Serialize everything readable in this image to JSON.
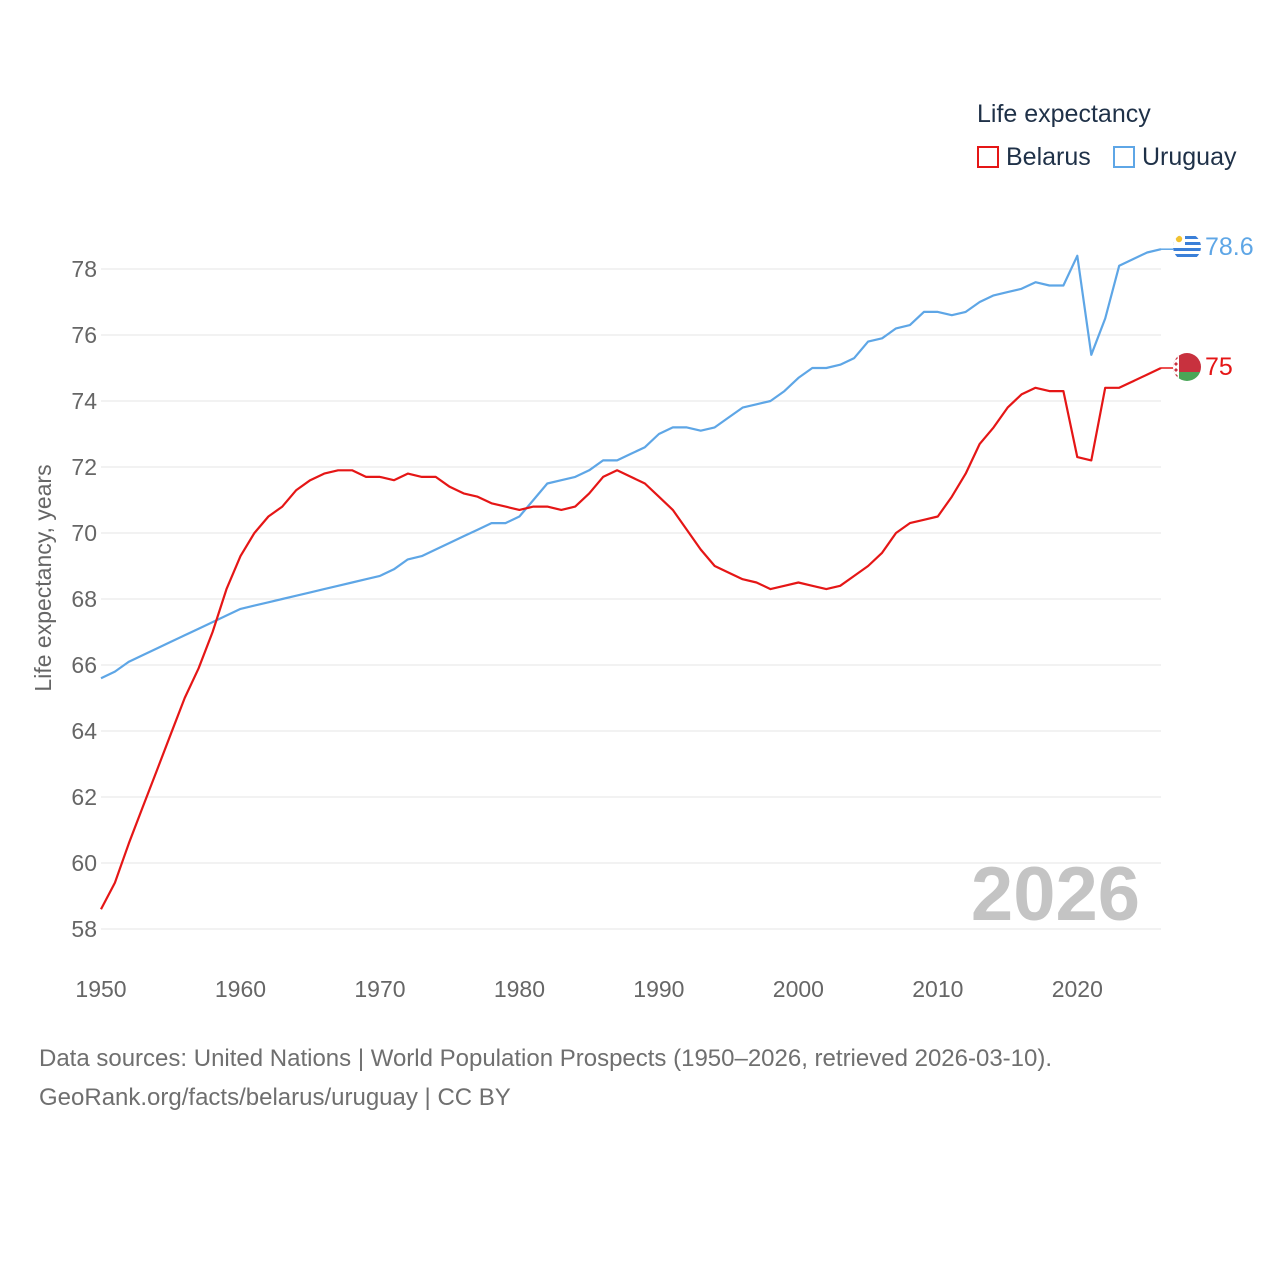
{
  "legend": {
    "title": "Life expectancy",
    "items": [
      {
        "label": "Belarus",
        "color": "#e51616"
      },
      {
        "label": "Uruguay",
        "color": "#5ea6e6"
      }
    ]
  },
  "source": {
    "line1": "Data sources: United Nations | World Population Prospects (1950–2026, retrieved 2026-03-10).",
    "line2": "GeoRank.org/facts/belarus/uruguay | CC BY"
  },
  "chart_data": {
    "type": "line",
    "title": "Life expectancy",
    "xlabel": "",
    "ylabel": "Life expectancy, years",
    "xlim": [
      1950,
      2026
    ],
    "ylim": [
      57.5,
      79.5
    ],
    "x_ticks": [
      "1950",
      "1960",
      "1970",
      "1980",
      "1990",
      "2000",
      "2010",
      "2020"
    ],
    "y_ticks": [
      "58",
      "60",
      "62",
      "64",
      "66",
      "68",
      "70",
      "72",
      "74",
      "76",
      "78"
    ],
    "grid": "horizontal",
    "legend_position": "top-right",
    "watermark": "2026",
    "x": [
      1950,
      1951,
      1952,
      1953,
      1954,
      1955,
      1956,
      1957,
      1958,
      1959,
      1960,
      1961,
      1962,
      1963,
      1964,
      1965,
      1966,
      1967,
      1968,
      1969,
      1970,
      1971,
      1972,
      1973,
      1974,
      1975,
      1976,
      1977,
      1978,
      1979,
      1980,
      1981,
      1982,
      1983,
      1984,
      1985,
      1986,
      1987,
      1988,
      1989,
      1990,
      1991,
      1992,
      1993,
      1994,
      1995,
      1996,
      1997,
      1998,
      1999,
      2000,
      2001,
      2002,
      2003,
      2004,
      2005,
      2006,
      2007,
      2008,
      2009,
      2010,
      2011,
      2012,
      2013,
      2014,
      2015,
      2016,
      2017,
      2018,
      2019,
      2020,
      2021,
      2022,
      2023,
      2024,
      2025,
      2026
    ],
    "series": [
      {
        "name": "Belarus",
        "color": "#e51616",
        "end_label": "75",
        "values": [
          58.6,
          59.4,
          60.6,
          61.7,
          62.8,
          63.9,
          65.0,
          65.9,
          67.0,
          68.3,
          69.3,
          70.0,
          70.5,
          70.8,
          71.3,
          71.6,
          71.8,
          71.9,
          71.9,
          71.7,
          71.7,
          71.6,
          71.8,
          71.7,
          71.7,
          71.4,
          71.2,
          71.1,
          70.9,
          70.8,
          70.7,
          70.8,
          70.8,
          70.7,
          70.8,
          71.2,
          71.7,
          71.9,
          71.7,
          71.5,
          71.1,
          70.7,
          70.1,
          69.5,
          69.0,
          68.8,
          68.6,
          68.5,
          68.3,
          68.4,
          68.5,
          68.4,
          68.3,
          68.4,
          68.7,
          69.0,
          69.4,
          70.0,
          70.3,
          70.4,
          70.5,
          71.1,
          71.8,
          72.7,
          73.2,
          73.8,
          74.2,
          74.4,
          74.3,
          74.3,
          72.3,
          72.2,
          74.4,
          74.4,
          74.6,
          74.8,
          75.0
        ]
      },
      {
        "name": "Uruguay",
        "color": "#5ea6e6",
        "end_label": "78.6",
        "values": [
          65.6,
          65.8,
          66.1,
          66.3,
          66.5,
          66.7,
          66.9,
          67.1,
          67.3,
          67.5,
          67.7,
          67.8,
          67.9,
          68.0,
          68.1,
          68.2,
          68.3,
          68.4,
          68.5,
          68.6,
          68.7,
          68.9,
          69.2,
          69.3,
          69.5,
          69.7,
          69.9,
          70.1,
          70.3,
          70.3,
          70.5,
          71.0,
          71.5,
          71.6,
          71.7,
          71.9,
          72.2,
          72.2,
          72.4,
          72.6,
          73.0,
          73.2,
          73.2,
          73.1,
          73.2,
          73.5,
          73.8,
          73.9,
          74.0,
          74.3,
          74.7,
          75.0,
          75.0,
          75.1,
          75.3,
          75.8,
          75.9,
          76.2,
          76.3,
          76.7,
          76.7,
          76.6,
          76.7,
          77.0,
          77.2,
          77.3,
          77.4,
          77.6,
          77.5,
          77.5,
          78.4,
          75.4,
          76.5,
          78.1,
          78.3,
          78.5,
          78.6
        ]
      }
    ]
  }
}
